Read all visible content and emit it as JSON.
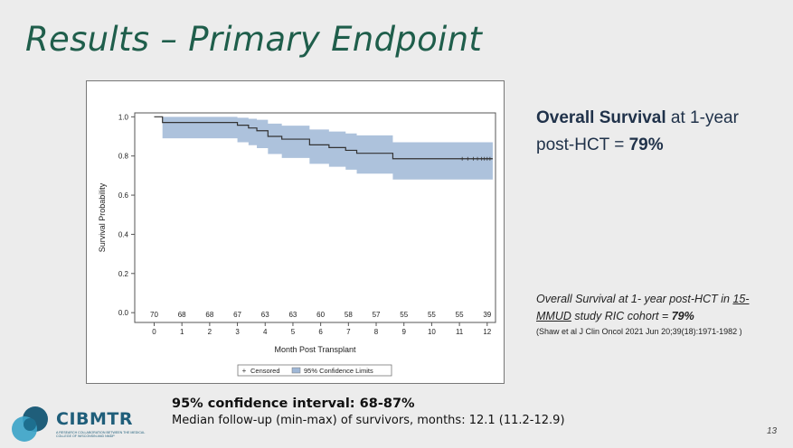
{
  "slide": {
    "title": "Results – Primary Endpoint",
    "page_number": "13"
  },
  "headline": {
    "bold_label": "Overall Survival",
    "mid_text": " at 1-year post-HCT = ",
    "value": "79%"
  },
  "cohort_note": {
    "line1": "Overall Survival at 1- year post-HCT in ",
    "underlined": "15-MMUD",
    "line2": " study RIC cohort = ",
    "value": "79%",
    "citation": "(Shaw et al J Clin Oncol 2021 Jun 20;39(18):1971-1982 )"
  },
  "footer": {
    "ci_text": "95% confidence interval: 68-87%",
    "followup_text": "Median follow-up (min-max) of survivors, months: 12.1 (11.2-12.9)"
  },
  "logo": {
    "name": "CIBMTR",
    "tagline": "A RESEARCH COLLABORATION BETWEEN THE MEDICAL COLLEGE OF WISCONSIN AND NMDP"
  },
  "colors": {
    "title": "#1f5e4b",
    "band": "#9fb7d6",
    "curve": "#333333"
  },
  "chart_data": {
    "type": "line",
    "xlabel": "Month Post Transplant",
    "ylabel": "Survival Probability",
    "xlim": [
      -0.7,
      12.3
    ],
    "ylim": [
      -0.05,
      1.02
    ],
    "xticks": [
      0,
      1,
      2,
      3,
      4,
      5,
      6,
      7,
      8,
      9,
      10,
      11,
      12
    ],
    "yticks": [
      0.0,
      0.2,
      0.4,
      0.6,
      0.8,
      1.0
    ],
    "ytick_labels": [
      "0.0",
      "0.2",
      "0.4",
      "0.6",
      "0.8",
      "1.0"
    ],
    "at_risk": {
      "months": [
        0,
        1,
        2,
        3,
        4,
        5,
        6,
        7,
        8,
        9,
        10,
        11,
        12
      ],
      "counts": [
        "70",
        "68",
        "68",
        "67",
        "63",
        "63",
        "60",
        "58",
        "57",
        "55",
        "55",
        "55",
        "39"
      ]
    },
    "survival_steps": {
      "x": [
        0,
        0.3,
        3.0,
        3.4,
        3.7,
        4.1,
        4.6,
        5.6,
        6.3,
        6.9,
        7.3,
        8.6,
        12.2
      ],
      "y": [
        1.0,
        0.971,
        0.957,
        0.943,
        0.929,
        0.9,
        0.886,
        0.857,
        0.843,
        0.829,
        0.814,
        0.786,
        0.786
      ]
    },
    "ci_lower": [
      1.0,
      0.89,
      0.87,
      0.855,
      0.84,
      0.81,
      0.79,
      0.76,
      0.745,
      0.73,
      0.71,
      0.68,
      0.68
    ],
    "ci_upper": [
      1.0,
      1.0,
      0.995,
      0.99,
      0.985,
      0.965,
      0.955,
      0.935,
      0.925,
      0.915,
      0.905,
      0.87,
      0.87
    ],
    "censored_x": [
      11.1,
      11.3,
      11.5,
      11.65,
      11.8,
      11.9,
      12.0,
      12.1
    ],
    "legend": [
      "Censored",
      "95% Confidence Limits"
    ]
  }
}
